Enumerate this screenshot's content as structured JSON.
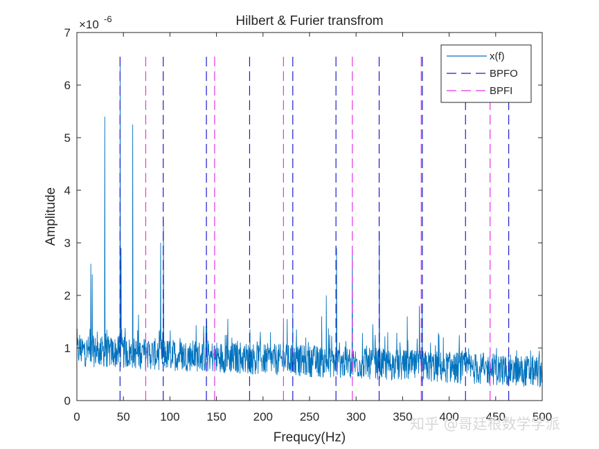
{
  "watermark": "知乎 @哥廷根数学学派",
  "chart_data": {
    "type": "line",
    "title": "Hilbert & Furier transfrom",
    "xlabel": "Frequcy(Hz)",
    "ylabel": "Amplitude",
    "y_exponent_label": "×10",
    "y_exponent_power": "-6",
    "xlim": [
      0,
      500
    ],
    "ylim": [
      0,
      7
    ],
    "xticks": [
      0,
      50,
      100,
      150,
      200,
      250,
      300,
      350,
      400,
      450,
      500
    ],
    "yticks": [
      0,
      1,
      2,
      3,
      4,
      5,
      6,
      7
    ],
    "grid": false,
    "legend_position": "top-right",
    "series": [
      {
        "name": "x(f)",
        "kind": "spectrum",
        "color": "#0072BD",
        "baseline_start": 0.95,
        "baseline_end": 0.55,
        "noise_amplitude": 0.38,
        "peaks": [
          {
            "x": 3,
            "y": 1.25
          },
          {
            "x": 15,
            "y": 2.6
          },
          {
            "x": 16.5,
            "y": 2.4
          },
          {
            "x": 30,
            "y": 5.4
          },
          {
            "x": 46.5,
            "y": 6.5
          },
          {
            "x": 47.5,
            "y": 2.9
          },
          {
            "x": 60,
            "y": 5.25
          },
          {
            "x": 90,
            "y": 3.0
          },
          {
            "x": 93,
            "y": 3.45
          },
          {
            "x": 139.5,
            "y": 1.55
          },
          {
            "x": 161,
            "y": 1.25
          },
          {
            "x": 186,
            "y": 1.35
          },
          {
            "x": 208,
            "y": 1.3
          },
          {
            "x": 222,
            "y": 1.45
          },
          {
            "x": 226,
            "y": 1.55
          },
          {
            "x": 232,
            "y": 1.65
          },
          {
            "x": 236,
            "y": 1.35
          },
          {
            "x": 246,
            "y": 1.2
          },
          {
            "x": 263,
            "y": 1.6
          },
          {
            "x": 268,
            "y": 2.0
          },
          {
            "x": 279,
            "y": 2.9
          },
          {
            "x": 296,
            "y": 2.85
          },
          {
            "x": 318,
            "y": 1.45
          },
          {
            "x": 325,
            "y": 3.2
          },
          {
            "x": 334,
            "y": 1.3
          },
          {
            "x": 355,
            "y": 1.6
          },
          {
            "x": 368,
            "y": 1.8
          },
          {
            "x": 371,
            "y": 1.85
          },
          {
            "x": 380,
            "y": 1.1
          },
          {
            "x": 414,
            "y": 0.95
          },
          {
            "x": 446,
            "y": 0.8
          },
          {
            "x": 458,
            "y": 0.75
          }
        ]
      },
      {
        "name": "BPFO",
        "kind": "markers",
        "color": "#1A1ACC",
        "x": [
          46.4,
          92.8,
          139.2,
          185.6,
          232.0,
          278.4,
          324.8,
          371.2,
          417.6,
          464.0
        ],
        "y_top": 6.55
      },
      {
        "name": "BPFI",
        "kind": "markers",
        "color": "#E632E6",
        "x": [
          74.0,
          148.0,
          222.0,
          296.0,
          370.0,
          444.0
        ],
        "y_top": 6.55
      }
    ]
  }
}
